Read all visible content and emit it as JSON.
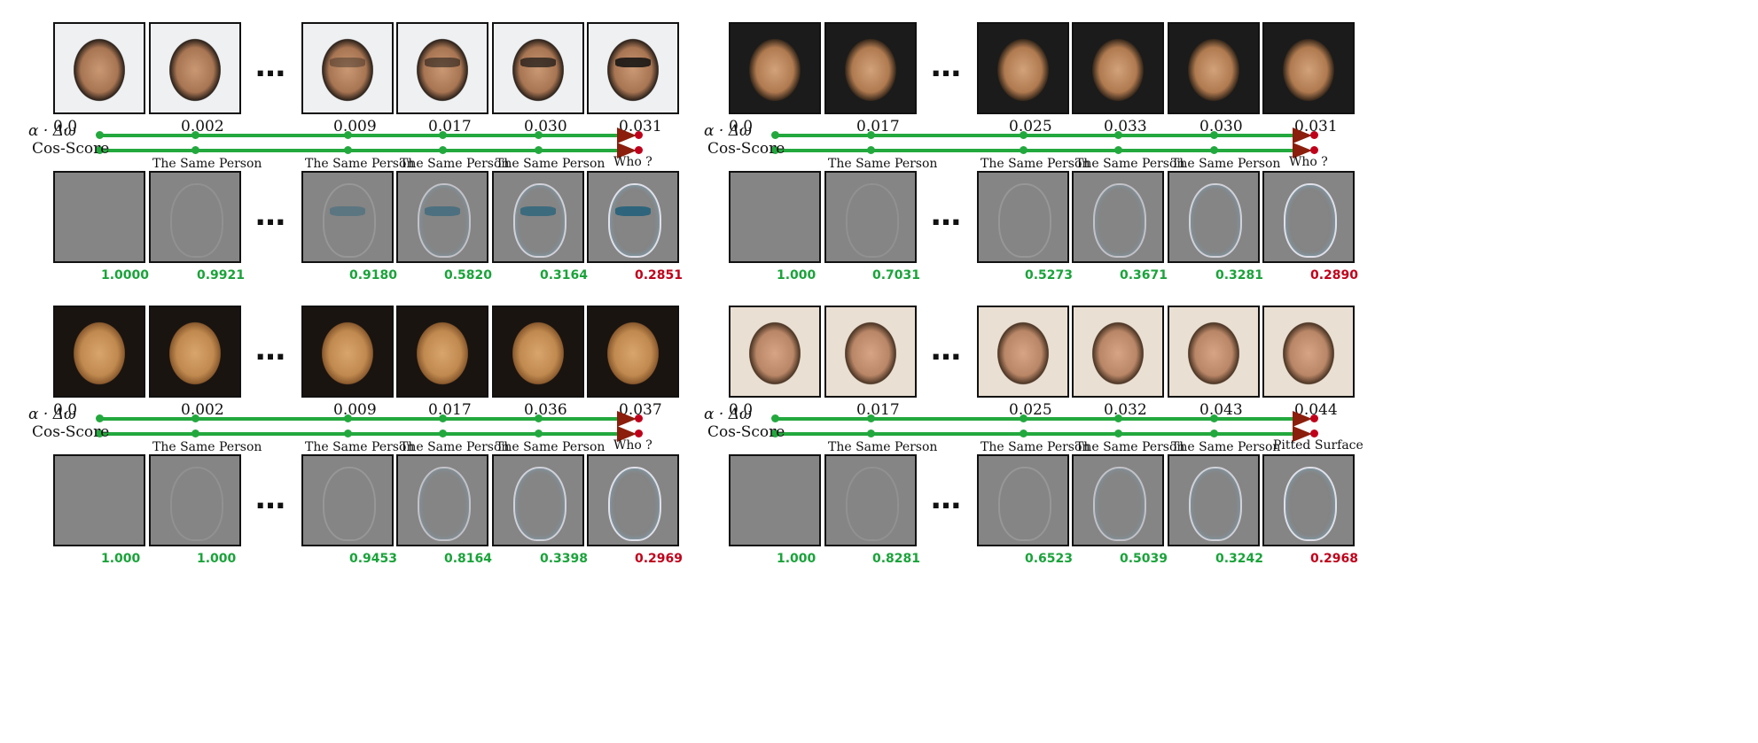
{
  "alpha_label": "α · Δω",
  "alpha_sub": "adv",
  "cos_label": "Cos-Score",
  "same_label": "The Same Person",
  "panels": [
    {
      "alphas": [
        "0.0",
        "0.002",
        "0.009",
        "0.017",
        "0.030",
        "0.031"
      ],
      "end_label": "Who ?",
      "scores": [
        "1.0000",
        "0.9921",
        "0.9180",
        "0.5820",
        "0.3164",
        "0.2851"
      ]
    },
    {
      "alphas": [
        "0.0",
        "0.017",
        "0.025",
        "0.033",
        "0.030",
        "0.031"
      ],
      "end_label": "Who ?",
      "scores": [
        "1.000",
        "0.7031",
        "0.5273",
        "0.3671",
        "0.3281",
        "0.2890"
      ]
    },
    {
      "alphas": [
        "0.0",
        "0.002",
        "0.009",
        "0.017",
        "0.036",
        "0.037"
      ],
      "end_label": "Who ?",
      "scores": [
        "1.000",
        "1.000",
        "0.9453",
        "0.8164",
        "0.3398",
        "0.2969"
      ]
    },
    {
      "alphas": [
        "0.0",
        "0.017",
        "0.025",
        "0.032",
        "0.043",
        "0.044"
      ],
      "end_label": "Pitted Surface",
      "scores": [
        "1.000",
        "0.8281",
        "0.6523",
        "0.5039",
        "0.3242",
        "0.2968"
      ]
    }
  ],
  "colors": {
    "line": "#23a83e",
    "arrow": "#8b1e0c",
    "fail": "#c0001a",
    "pass": "#1aa33a"
  }
}
